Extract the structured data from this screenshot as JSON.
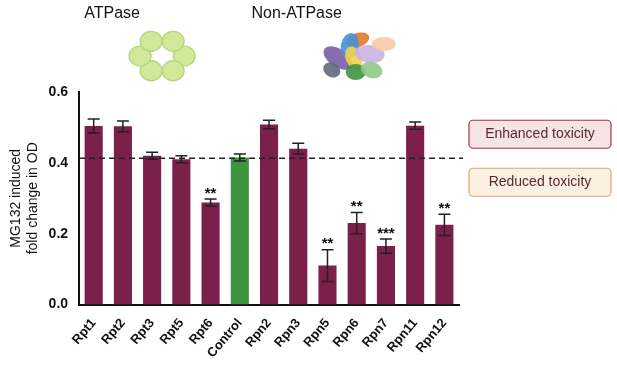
{
  "chart_data": {
    "type": "bar",
    "categories": [
      "Rpt1",
      "Rpt2",
      "Rpt3",
      "Rpt5",
      "Rpt6",
      "Control",
      "Rpn2",
      "Rpn3",
      "Rpn5",
      "Rpn6",
      "Rpn7",
      "Rpn11",
      "Rpn12"
    ],
    "values": [
      0.504,
      0.503,
      0.42,
      0.41,
      0.288,
      0.415,
      0.508,
      0.44,
      0.11,
      0.23,
      0.165,
      0.505,
      0.225
    ],
    "errors": [
      0.02,
      0.015,
      0.01,
      0.01,
      0.01,
      0.01,
      0.012,
      0.015,
      0.045,
      0.03,
      0.02,
      0.01,
      0.03
    ],
    "significance": [
      null,
      null,
      null,
      null,
      "**",
      null,
      null,
      null,
      "**",
      "**",
      "***",
      null,
      "**"
    ],
    "colors": [
      "#7b1f4b",
      "#7b1f4b",
      "#7b1f4b",
      "#7b1f4b",
      "#7b1f4b",
      "#3f9440",
      "#7b1f4b",
      "#7b1f4b",
      "#7b1f4b",
      "#7b1f4b",
      "#7b1f4b",
      "#7b1f4b",
      "#7b1f4b"
    ],
    "y_label": [
      "MG132 induced",
      "fold change in OD"
    ],
    "ylim": [
      0,
      0.6
    ],
    "yticks": [
      {
        "value": 0,
        "label": "0.0"
      },
      0.2,
      0.4,
      0.6
    ],
    "grid": false,
    "reference_line": {
      "value": 0.413,
      "line_style": "dashed"
    },
    "group_labels": [
      "ATPase",
      "Non-ATPase"
    ],
    "annotations": [
      "Enhanced toxicity",
      "Reduced toxicity"
    ]
  }
}
